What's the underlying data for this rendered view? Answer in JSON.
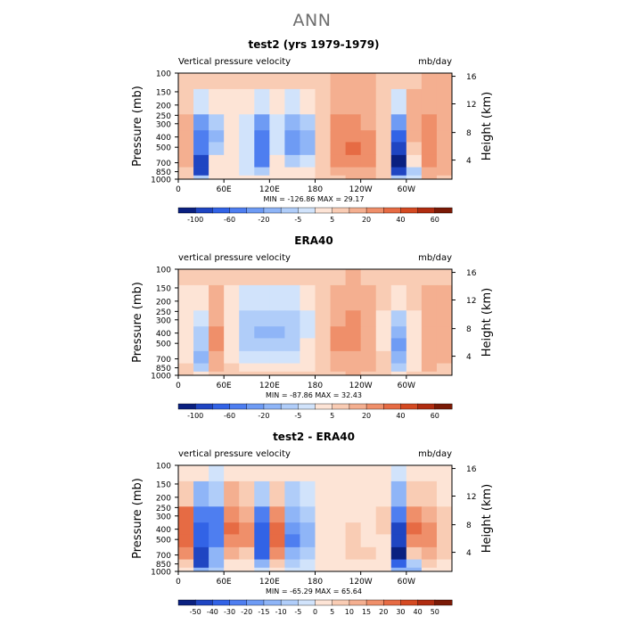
{
  "main_title": "ANN",
  "chart_data": [
    {
      "type": "heatmap",
      "title": "test2 (yrs 1979-1979)",
      "subtitle_left": "Vertical pressure velocity",
      "subtitle_right": "mb/day",
      "ylabel": "Pressure (mb)",
      "ylabel_right": "Height (km)",
      "pressure_ticks": [
        "100",
        "150",
        "200",
        "250",
        "300",
        "400",
        "500",
        "700",
        "850",
        "1000"
      ],
      "height_ticks": [
        "16",
        "12",
        "8",
        "4"
      ],
      "longitude_ticks": [
        "0",
        "60E",
        "120E",
        "180",
        "120W",
        "60W"
      ],
      "stats": "MIN = -126.86   MAX =  29.17",
      "colorbar_labels": [
        "-100",
        "-60",
        "-20",
        "-5",
        "5",
        "20",
        "40",
        "60"
      ],
      "colorbar": [
        "#0a2080",
        "#1f45c2",
        "#3263e6",
        "#4e7ef0",
        "#6e9bf4",
        "#8fb5f7",
        "#b0cdf9",
        "#d1e3fb",
        "#fde4d6",
        "#f9ccb4",
        "#f4af90",
        "#ef8f6a",
        "#e66b44",
        "#d44a22",
        "#b02c10",
        "#7a1a06"
      ],
      "longitudes": [
        0,
        20,
        40,
        60,
        80,
        100,
        120,
        140,
        160,
        180,
        200,
        220,
        240,
        260,
        280,
        300,
        320,
        340
      ],
      "pressure_levels": [
        100,
        200,
        300,
        400,
        500,
        700,
        850,
        1000
      ],
      "values": [
        [
          -8,
          -2,
          -4,
          -6,
          -3,
          -5,
          -6,
          -3,
          -4,
          -2,
          3,
          4,
          3,
          -2,
          -8,
          2,
          4,
          3
        ],
        [
          -5,
          -30,
          -20,
          -10,
          -15,
          -30,
          -20,
          -25,
          -20,
          -5,
          8,
          10,
          6,
          -5,
          -25,
          8,
          12,
          6
        ],
        [
          8,
          -60,
          -40,
          -15,
          -25,
          -60,
          -30,
          -50,
          -40,
          -5,
          15,
          20,
          12,
          -5,
          -60,
          5,
          18,
          8
        ],
        [
          10,
          -70,
          -45,
          -10,
          -30,
          -70,
          -30,
          -60,
          -50,
          -5,
          20,
          25,
          18,
          -5,
          -80,
          3,
          22,
          10
        ],
        [
          10,
          -75,
          -40,
          -10,
          -30,
          -75,
          -25,
          -60,
          -45,
          -5,
          22,
          28,
          20,
          -5,
          -100,
          0,
          22,
          12
        ],
        [
          5,
          -90,
          -20,
          -10,
          -30,
          -70,
          -20,
          -40,
          -30,
          -5,
          15,
          22,
          18,
          -5,
          -110,
          -20,
          15,
          10
        ],
        [
          0,
          -100,
          -20,
          -20,
          -25,
          -40,
          -15,
          -20,
          -20,
          -5,
          5,
          10,
          10,
          -5,
          -90,
          -40,
          10,
          5
        ],
        [
          -5,
          -40,
          -10,
          -10,
          -10,
          -10,
          -10,
          -10,
          -10,
          -5,
          2,
          4,
          3,
          -5,
          -40,
          -30,
          5,
          2
        ]
      ]
    },
    {
      "type": "heatmap",
      "title": "ERA40",
      "subtitle_left": "vertical pressure velocity",
      "subtitle_right": "mb/day",
      "ylabel": "Pressure (mb)",
      "ylabel_right": "Height (km)",
      "pressure_ticks": [
        "100",
        "150",
        "200",
        "250",
        "300",
        "400",
        "500",
        "700",
        "850",
        "1000"
      ],
      "height_ticks": [
        "16",
        "12",
        "8",
        "4"
      ],
      "longitude_ticks": [
        "0",
        "60E",
        "120E",
        "180",
        "120W",
        "60W"
      ],
      "stats": "MIN = -87.86   MAX =  32.43",
      "colorbar_labels": [
        "-100",
        "-60",
        "-20",
        "-5",
        "5",
        "20",
        "40",
        "60"
      ],
      "colorbar": [
        "#0a2080",
        "#1f45c2",
        "#3263e6",
        "#4e7ef0",
        "#6e9bf4",
        "#8fb5f7",
        "#b0cdf9",
        "#d1e3fb",
        "#fde4d6",
        "#f9ccb4",
        "#f4af90",
        "#ef8f6a",
        "#e66b44",
        "#d44a22",
        "#b02c10",
        "#7a1a06"
      ],
      "longitudes": [
        0,
        20,
        40,
        60,
        80,
        100,
        120,
        140,
        160,
        180,
        200,
        220,
        240,
        260,
        280,
        300,
        320,
        340
      ],
      "pressure_levels": [
        100,
        200,
        300,
        400,
        500,
        700,
        850,
        1000
      ],
      "values": [
        [
          -4,
          -5,
          -3,
          -5,
          -6,
          -8,
          -8,
          -6,
          -5,
          -2,
          2,
          3,
          2,
          -3,
          -5,
          -2,
          2,
          2
        ],
        [
          -10,
          -20,
          5,
          -15,
          -25,
          -30,
          -30,
          -25,
          -20,
          -5,
          8,
          10,
          6,
          -8,
          -20,
          -5,
          5,
          3
        ],
        [
          -15,
          -30,
          10,
          -20,
          -35,
          -40,
          -40,
          -35,
          -25,
          -3,
          12,
          15,
          10,
          -10,
          -35,
          -10,
          8,
          5
        ],
        [
          -15,
          -35,
          15,
          -20,
          -40,
          -45,
          -45,
          -40,
          -25,
          0,
          15,
          18,
          12,
          -10,
          -50,
          -15,
          10,
          6
        ],
        [
          -10,
          -40,
          18,
          -15,
          -35,
          -40,
          -40,
          -35,
          -20,
          0,
          15,
          18,
          12,
          -10,
          -55,
          -15,
          10,
          6
        ],
        [
          -10,
          -45,
          12,
          -12,
          -25,
          -30,
          -30,
          -25,
          -15,
          0,
          8,
          12,
          8,
          -8,
          -50,
          -15,
          6,
          4
        ],
        [
          -8,
          -35,
          5,
          -8,
          -15,
          -15,
          -15,
          -15,
          -10,
          0,
          4,
          6,
          4,
          -5,
          -35,
          -10,
          4,
          2
        ],
        [
          -4,
          -15,
          2,
          -4,
          -6,
          -6,
          -6,
          -6,
          -5,
          0,
          2,
          3,
          2,
          -3,
          -15,
          -5,
          2,
          1
        ]
      ]
    },
    {
      "type": "heatmap",
      "title": "test2 - ERA40",
      "subtitle_left": "vertical pressure velocity",
      "subtitle_right": "mb/day",
      "ylabel": "Pressure (mb)",
      "ylabel_right": "Height (km)",
      "pressure_ticks": [
        "100",
        "150",
        "200",
        "250",
        "300",
        "400",
        "500",
        "700",
        "850",
        "1000"
      ],
      "height_ticks": [
        "16",
        "12",
        "8",
        "4"
      ],
      "longitude_ticks": [
        "0",
        "60E",
        "120E",
        "180",
        "120W",
        "60W"
      ],
      "stats": "MIN = -65.29   MAX =  65.64",
      "colorbar_labels": [
        "-50",
        "-40",
        "-30",
        "-20",
        "-15",
        "-10",
        "-5",
        "0",
        "5",
        "10",
        "15",
        "20",
        "30",
        "40",
        "50"
      ],
      "colorbar": [
        "#0a2080",
        "#1f45c2",
        "#3263e6",
        "#4e7ef0",
        "#6e9bf4",
        "#8fb5f7",
        "#b0cdf9",
        "#d1e3fb",
        "#fde4d6",
        "#f9ccb4",
        "#f4af90",
        "#ef8f6a",
        "#e66b44",
        "#d44a22",
        "#b02c10",
        "#7a1a06"
      ],
      "longitudes": [
        0,
        20,
        40,
        60,
        80,
        100,
        120,
        140,
        160,
        180,
        200,
        220,
        240,
        260,
        280,
        300,
        320,
        340
      ],
      "pressure_levels": [
        100,
        200,
        300,
        400,
        500,
        700,
        850,
        1000
      ],
      "values": [
        [
          3,
          2,
          -2,
          3,
          3,
          2,
          2,
          2,
          2,
          1,
          1,
          2,
          2,
          0,
          -3,
          3,
          3,
          2
        ],
        [
          12,
          -20,
          -10,
          15,
          10,
          -10,
          12,
          -10,
          -5,
          2,
          3,
          3,
          2,
          5,
          -20,
          10,
          10,
          6
        ],
        [
          30,
          -35,
          -30,
          25,
          20,
          -30,
          25,
          -20,
          -12,
          3,
          5,
          6,
          4,
          8,
          -35,
          25,
          20,
          10
        ],
        [
          35,
          -40,
          -35,
          30,
          25,
          -40,
          30,
          -25,
          -15,
          3,
          6,
          8,
          5,
          8,
          -45,
          30,
          25,
          12
        ],
        [
          35,
          -40,
          -30,
          28,
          25,
          -40,
          30,
          -30,
          -15,
          2,
          6,
          8,
          6,
          6,
          -50,
          25,
          25,
          12
        ],
        [
          25,
          -45,
          -15,
          15,
          12,
          -40,
          28,
          -20,
          -10,
          2,
          5,
          8,
          8,
          4,
          -55,
          10,
          20,
          8
        ],
        [
          10,
          -45,
          -15,
          6,
          5,
          -20,
          12,
          -8,
          -5,
          1,
          3,
          4,
          4,
          5,
          -40,
          -10,
          10,
          5
        ],
        [
          2,
          -20,
          -8,
          3,
          2,
          -5,
          5,
          -3,
          -2,
          0,
          1,
          1,
          1,
          3,
          -20,
          -15,
          4,
          2
        ]
      ]
    }
  ]
}
